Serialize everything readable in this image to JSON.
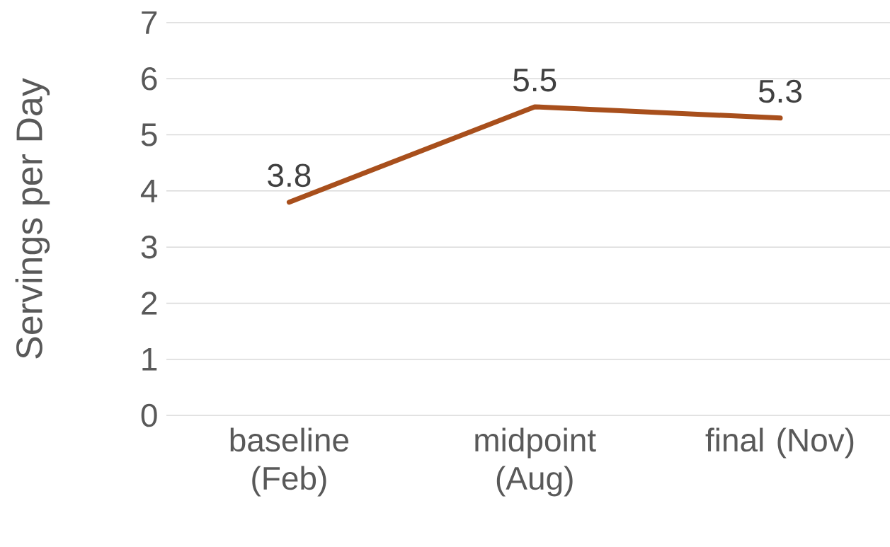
{
  "chart_data": {
    "type": "line",
    "ylabel": "Servings per Day",
    "categories": [
      "baseline (Feb)",
      "midpoint (Aug)",
      "final (Nov)"
    ],
    "values": [
      3.8,
      5.5,
      5.3
    ],
    "color": "#a84f1c",
    "ylim": [
      0,
      7
    ],
    "yticks": [
      0,
      1,
      2,
      3,
      4,
      5,
      6,
      7
    ],
    "grid": "y",
    "data_labels": true
  }
}
